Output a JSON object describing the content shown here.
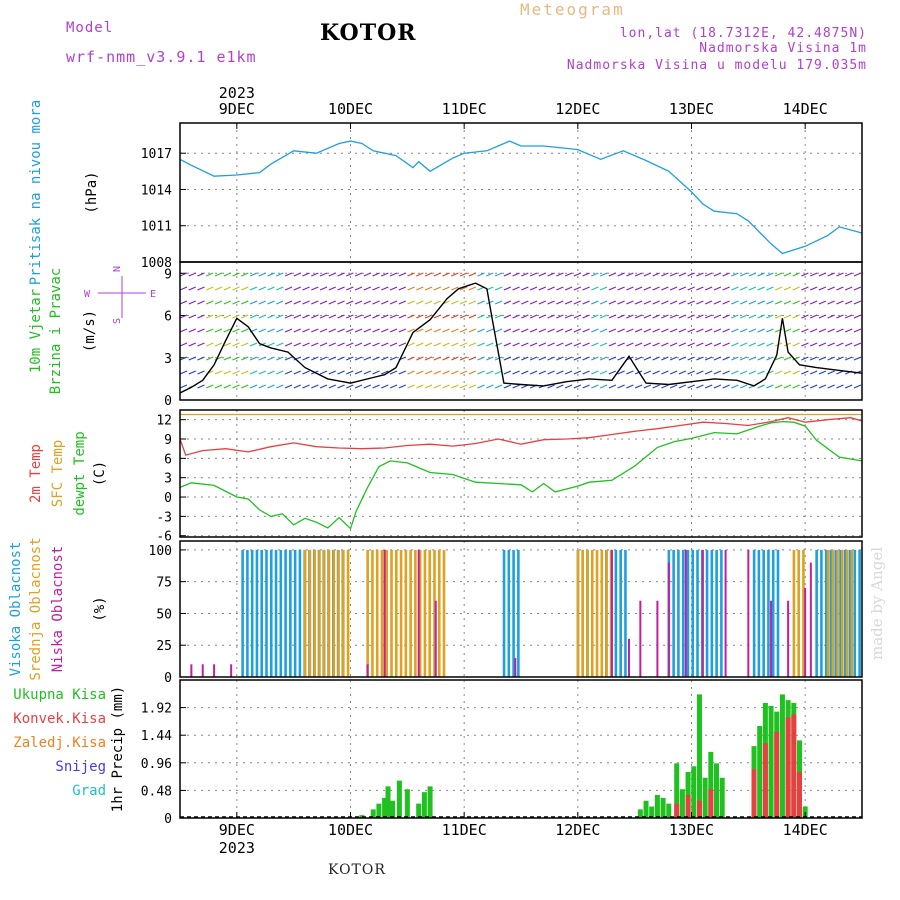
{
  "header": {
    "model_label": "Model",
    "model_name": "wrf-nmm_v3.9.1 e1km",
    "title": "KOTOR",
    "meteogram": "Meteogram",
    "lonlat": "lon,lat (18.7312E, 42.4875N)",
    "elevation": "Nadmorska Visina 1m",
    "model_elevation": "Nadmorska Visina u modelu 179.035m"
  },
  "footer": {
    "station": "KOTOR",
    "credit": "made by Angel"
  },
  "colors": {
    "pressure": "#1ea0e0",
    "temp2m": "#e84040",
    "sfc": "#e0a020",
    "dewpt": "#20c020",
    "high_cloud": "#1ea0e0",
    "mid_cloud": "#e0a020",
    "low_cloud": "#c020a0",
    "label_purple": "#b040d0"
  },
  "chart_data": [
    {
      "type": "line",
      "panel": "pressure",
      "ylabel_lines": [
        "Pritisak na nivou mora",
        "(hPa)"
      ],
      "ylabel_colors": [
        "#1ea0e0",
        "#000000"
      ],
      "yticks": [
        1008,
        1011,
        1014,
        1017
      ],
      "ylim": [
        1008,
        1019.5
      ],
      "x_day_ticks": [
        "9DEC",
        "10DEC",
        "11DEC",
        "12DEC",
        "13DEC",
        "14DEC"
      ],
      "x_top_year": "2023",
      "series": [
        {
          "color": "#1ea0e0",
          "x": [
            8.5,
            8.6,
            8.8,
            9.0,
            9.2,
            9.3,
            9.5,
            9.7,
            9.9,
            10.0,
            10.1,
            10.2,
            10.4,
            10.55,
            10.6,
            10.7,
            10.9,
            11.0,
            11.2,
            11.4,
            11.5,
            11.7,
            11.9,
            12.0,
            12.2,
            12.4,
            12.6,
            12.8,
            13.0,
            13.1,
            13.2,
            13.4,
            13.5,
            13.7,
            13.8,
            14.0,
            14.2,
            14.3,
            14.5
          ],
          "y": [
            1016.5,
            1016.0,
            1015.1,
            1015.2,
            1015.4,
            1016.1,
            1017.2,
            1017.0,
            1017.8,
            1018.0,
            1017.8,
            1017.2,
            1016.8,
            1015.8,
            1016.3,
            1015.5,
            1016.6,
            1017.0,
            1017.2,
            1018.0,
            1017.6,
            1017.6,
            1017.4,
            1017.3,
            1016.5,
            1017.2,
            1016.4,
            1015.5,
            1013.8,
            1012.8,
            1012.2,
            1012.0,
            1011.4,
            1009.5,
            1008.7,
            1009.3,
            1010.2,
            1010.9,
            1010.4
          ]
        }
      ]
    },
    {
      "type": "line",
      "panel": "wind",
      "ylabel_lines": [
        "10m Vjetar",
        "Brzina i Pravac",
        "(m/s)"
      ],
      "ylabel_colors": [
        "#20c020",
        "#20c020",
        "#000000"
      ],
      "compass": [
        "N",
        "W",
        "E",
        "S"
      ],
      "yticks": [
        0,
        3,
        6,
        9
      ],
      "ylim": [
        0,
        9.8
      ],
      "series": [
        {
          "name": "speed",
          "color": "#000000",
          "x": [
            8.5,
            8.6,
            8.7,
            8.8,
            8.9,
            9.0,
            9.05,
            9.1,
            9.2,
            9.3,
            9.45,
            9.6,
            9.8,
            10.0,
            10.2,
            10.3,
            10.4,
            10.55,
            10.7,
            10.85,
            10.95,
            11.1,
            11.2,
            11.25,
            11.35,
            11.5,
            11.7,
            11.9,
            12.1,
            12.3,
            12.45,
            12.6,
            12.8,
            13.0,
            13.2,
            13.4,
            13.55,
            13.65,
            13.75,
            13.8,
            13.85,
            13.95,
            14.1,
            14.3,
            14.5
          ],
          "y": [
            0.5,
            0.9,
            1.4,
            2.5,
            4.2,
            5.8,
            5.5,
            5.2,
            4.0,
            3.7,
            3.4,
            2.3,
            1.5,
            1.2,
            1.6,
            1.8,
            2.3,
            4.8,
            5.7,
            7.2,
            7.9,
            8.3,
            7.9,
            5.6,
            1.2,
            1.1,
            1.0,
            1.3,
            1.5,
            1.4,
            3.1,
            1.2,
            1.1,
            1.3,
            1.5,
            1.4,
            1.0,
            1.5,
            3.2,
            5.8,
            3.4,
            2.5,
            2.3,
            2.1,
            1.9
          ]
        }
      ]
    },
    {
      "type": "line",
      "panel": "temperature",
      "ylabel_lines": [
        "2m Temp",
        "SFC Temp",
        "dewpt Temp",
        "(C)"
      ],
      "ylabel_colors": [
        "#e84040",
        "#e0a020",
        "#20c020",
        "#000000"
      ],
      "yticks": [
        -6,
        -3,
        0,
        3,
        6,
        9,
        12
      ],
      "ylim": [
        -6.2,
        13.5
      ],
      "series": [
        {
          "name": "2m Temp",
          "color": "#e84040",
          "x": [
            8.5,
            8.55,
            8.7,
            8.9,
            9.1,
            9.3,
            9.5,
            9.7,
            9.9,
            10.1,
            10.3,
            10.5,
            10.7,
            10.9,
            11.1,
            11.3,
            11.5,
            11.7,
            11.9,
            12.1,
            12.3,
            12.5,
            12.7,
            12.9,
            13.1,
            13.3,
            13.5,
            13.7,
            13.85,
            14.0,
            14.2,
            14.4,
            14.5
          ],
          "y": [
            9.0,
            6.5,
            7.2,
            7.5,
            7.0,
            7.8,
            8.4,
            7.8,
            7.6,
            7.5,
            7.6,
            8.0,
            8.2,
            7.9,
            8.3,
            9.0,
            8.2,
            8.9,
            9.0,
            9.2,
            9.7,
            10.2,
            10.6,
            11.1,
            11.6,
            11.4,
            11.1,
            11.7,
            12.3,
            11.6,
            12.0,
            12.3,
            11.8
          ]
        },
        {
          "name": "SFC Temp",
          "color": "#e0a020",
          "x": [
            8.5,
            14.5
          ],
          "y": [
            12.8,
            12.8
          ]
        },
        {
          "name": "dewpt Temp",
          "color": "#20c020",
          "x": [
            8.5,
            8.6,
            8.8,
            9.0,
            9.1,
            9.2,
            9.3,
            9.4,
            9.5,
            9.6,
            9.7,
            9.8,
            9.9,
            10.0,
            10.05,
            10.15,
            10.25,
            10.35,
            10.5,
            10.7,
            10.9,
            11.1,
            11.3,
            11.5,
            11.6,
            11.7,
            11.8,
            12.0,
            12.1,
            12.3,
            12.5,
            12.7,
            12.85,
            13.0,
            13.2,
            13.4,
            13.6,
            13.7,
            13.8,
            13.9,
            14.0,
            14.1,
            14.3,
            14.5
          ],
          "y": [
            1.5,
            2.2,
            1.8,
            0.0,
            -0.3,
            -2.0,
            -3.0,
            -2.6,
            -4.3,
            -3.3,
            -3.9,
            -4.8,
            -3.2,
            -4.9,
            -2.2,
            1.5,
            4.7,
            5.6,
            5.3,
            3.8,
            3.5,
            2.3,
            2.1,
            1.9,
            0.8,
            2.1,
            0.8,
            1.7,
            2.3,
            2.6,
            4.8,
            7.7,
            8.6,
            9.1,
            10.0,
            9.8,
            11.0,
            11.5,
            11.7,
            11.6,
            11.0,
            8.8,
            6.2,
            5.6
          ]
        }
      ]
    },
    {
      "type": "bar",
      "panel": "cloud",
      "ylabel_lines": [
        "Visoka Oblacnost",
        "Srednja Oblacnost",
        "Niska Oblacnost",
        "(%)"
      ],
      "ylabel_colors": [
        "#1ea0e0",
        "#e0a020",
        "#c020a0",
        "#000000"
      ],
      "yticks": [
        0,
        25,
        50,
        75,
        100
      ],
      "ylim": [
        0,
        107
      ],
      "series": [
        {
          "name": "Visoka Oblacnost",
          "color": "#1ea0e0",
          "intervals": [
            [
              9.05,
              9.95
            ],
            [
              11.35,
              11.5
            ],
            [
              12.0,
              12.1
            ],
            [
              12.25,
              12.45
            ],
            [
              12.8,
              13.3
            ],
            [
              13.55,
              13.8
            ],
            [
              14.1,
              14.5
            ]
          ],
          "value": 100
        },
        {
          "name": "Srednja Oblacnost",
          "color": "#e0a020",
          "intervals": [
            [
              9.6,
              10.0
            ],
            [
              10.15,
              10.85
            ],
            [
              12.0,
              12.3
            ],
            [
              13.9,
              14.0
            ],
            [
              14.2,
              14.45
            ]
          ],
          "value": 100
        },
        {
          "name": "Niska Oblacnost",
          "color": "#c020a0",
          "points": [
            [
              8.6,
              10
            ],
            [
              8.7,
              10
            ],
            [
              8.8,
              10
            ],
            [
              8.95,
              10
            ],
            [
              10.15,
              10
            ],
            [
              10.3,
              100
            ],
            [
              10.6,
              100
            ],
            [
              10.75,
              60
            ],
            [
              11.45,
              15
            ],
            [
              12.3,
              100
            ],
            [
              12.45,
              30
            ],
            [
              12.55,
              60
            ],
            [
              12.7,
              60
            ],
            [
              12.8,
              90
            ],
            [
              12.95,
              100
            ],
            [
              13.1,
              100
            ],
            [
              13.3,
              100
            ],
            [
              13.5,
              100
            ],
            [
              13.7,
              60
            ],
            [
              13.85,
              60
            ],
            [
              14.0,
              70
            ],
            [
              14.05,
              90
            ]
          ]
        }
      ]
    },
    {
      "type": "bar",
      "panel": "precip",
      "ylabel_lines": [
        "1hr Precip (mm)"
      ],
      "ylabel_colors": [
        "#000000"
      ],
      "legend": [
        {
          "label": "Ukupna Kisa",
          "color": "#20c020"
        },
        {
          "label": "Konvek.Kisa",
          "color": "#e84040"
        },
        {
          "label": "Zaledj.Kisa",
          "color": "#f08020"
        },
        {
          "label": "Snijeg",
          "color": "#4040e0"
        },
        {
          "label": "Grad",
          "color": "#20c0c0"
        }
      ],
      "yticks": [
        0,
        0.48,
        0.96,
        1.44,
        1.92
      ],
      "ylim": [
        0,
        2.4
      ],
      "x_bottom_year": "2023",
      "series": [
        {
          "name": "Ukupna Kisa",
          "color": "#20c020",
          "points": [
            [
              10.1,
              0.05
            ],
            [
              10.2,
              0.15
            ],
            [
              10.25,
              0.25
            ],
            [
              10.3,
              0.35
            ],
            [
              10.33,
              0.55
            ],
            [
              10.37,
              0.3
            ],
            [
              10.43,
              0.65
            ],
            [
              10.5,
              0.5
            ],
            [
              10.6,
              0.25
            ],
            [
              10.65,
              0.45
            ],
            [
              10.7,
              0.55
            ],
            [
              12.55,
              0.15
            ],
            [
              12.6,
              0.3
            ],
            [
              12.65,
              0.2
            ],
            [
              12.7,
              0.4
            ],
            [
              12.75,
              0.35
            ],
            [
              12.8,
              0.25
            ],
            [
              12.87,
              0.95
            ],
            [
              12.92,
              0.5
            ],
            [
              12.97,
              0.8
            ],
            [
              13.02,
              0.9
            ],
            [
              13.07,
              2.15
            ],
            [
              13.12,
              0.7
            ],
            [
              13.17,
              1.15
            ],
            [
              13.22,
              0.95
            ],
            [
              13.27,
              0.7
            ],
            [
              13.55,
              1.25
            ],
            [
              13.6,
              1.6
            ],
            [
              13.65,
              2.0
            ],
            [
              13.7,
              1.95
            ],
            [
              13.75,
              1.85
            ],
            [
              13.8,
              2.15
            ],
            [
              13.85,
              2.05
            ],
            [
              13.9,
              2.0
            ],
            [
              13.95,
              1.35
            ],
            [
              14.0,
              0.2
            ]
          ]
        },
        {
          "name": "Konvek.Kisa",
          "color": "#e84040",
          "points": [
            [
              12.87,
              0.25
            ],
            [
              12.97,
              0.4
            ],
            [
              13.07,
              0.3
            ],
            [
              13.17,
              0.5
            ],
            [
              13.55,
              0.85
            ],
            [
              13.65,
              1.3
            ],
            [
              13.75,
              1.5
            ],
            [
              13.85,
              1.75
            ],
            [
              13.9,
              1.8
            ],
            [
              13.95,
              0.8
            ]
          ]
        }
      ]
    }
  ]
}
